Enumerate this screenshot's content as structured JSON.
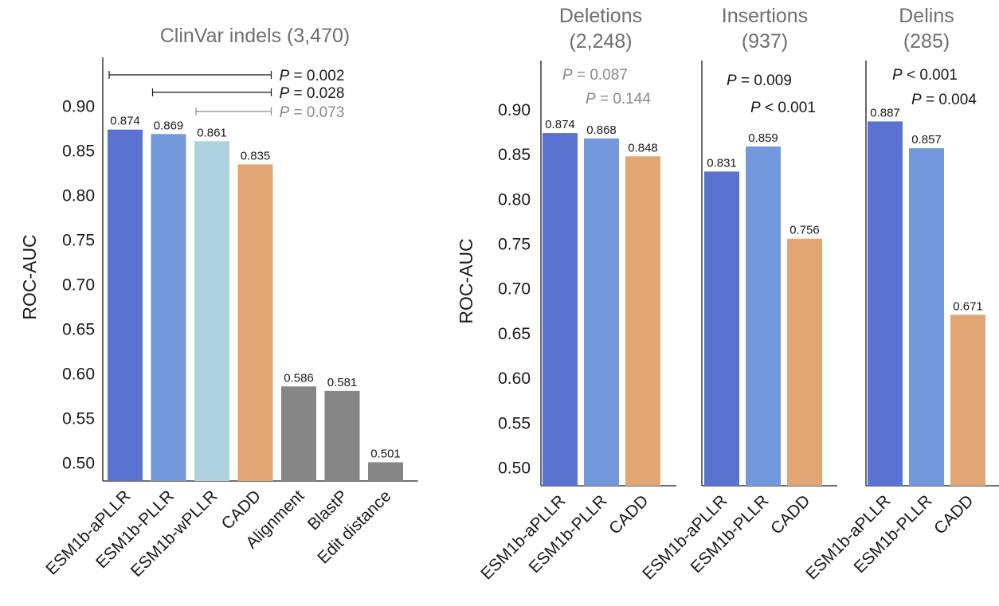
{
  "colors": {
    "ESM1b-aPLLR": "#5b73d0",
    "ESM1b-PLLR": "#7399dc",
    "ESM1b-wPLLR": "#afd3de",
    "CADD": "#e2a674",
    "Alignment": "#868686",
    "BlastP": "#868686",
    "Edit distance": "#868686",
    "sig_black": "#1a1a1a",
    "sig_grey": "#8a8a8a"
  },
  "chart_data": [
    {
      "type": "bar",
      "title": "ClinVar indels (3,470)",
      "title_lines": [
        "ClinVar indels (3,470)"
      ],
      "ylabel": "ROC-AUC",
      "ylim": [
        0.48,
        0.955
      ],
      "yticks": [
        0.9,
        0.85,
        0.8,
        0.75,
        0.7,
        0.65,
        0.6,
        0.55,
        0.5
      ],
      "ytick_labels": [
        "0.90",
        "0.85",
        "0.80",
        "0.75",
        "0.70",
        "0.65",
        "0.60",
        "0.55",
        "0.50"
      ],
      "categories": [
        "ESM1b-aPLLR",
        "ESM1b-PLLR",
        "ESM1b-wPLLR",
        "CADD",
        "Alignment",
        "BlastP",
        "Edit distance"
      ],
      "values": [
        0.874,
        0.869,
        0.861,
        0.835,
        0.586,
        0.581,
        0.501
      ],
      "value_labels": [
        "0.874",
        "0.869",
        "0.861",
        "0.835",
        "0.586",
        "0.581",
        "0.501"
      ],
      "comparisons": [
        {
          "p": "= 0.002",
          "from": 0,
          "to": 3,
          "style": "black"
        },
        {
          "p": "= 0.028",
          "from": 1,
          "to": 3,
          "style": "black"
        },
        {
          "p": "= 0.073",
          "from": 2,
          "to": 3,
          "style": "grey"
        }
      ]
    },
    {
      "type": "bar",
      "title": "Deletions (2,248)",
      "title_lines": [
        "Deletions",
        "(2,248)"
      ],
      "ylabel": "ROC-AUC",
      "ylim": [
        0.48,
        0.955
      ],
      "yticks": [
        0.9,
        0.85,
        0.8,
        0.75,
        0.7,
        0.65,
        0.6,
        0.55,
        0.5
      ],
      "ytick_labels": [
        "0.90",
        "0.85",
        "0.80",
        "0.75",
        "0.70",
        "0.65",
        "0.60",
        "0.55",
        "0.50"
      ],
      "categories": [
        "ESM1b-aPLLR",
        "ESM1b-PLLR",
        "CADD"
      ],
      "values": [
        0.874,
        0.868,
        0.848
      ],
      "value_labels": [
        "0.874",
        "0.868",
        "0.848"
      ],
      "pvalues": [
        {
          "p": "= 0.087",
          "style": "grey"
        },
        {
          "p": "= 0.144",
          "style": "grey"
        }
      ]
    },
    {
      "type": "bar",
      "title": "Insertions (937)",
      "title_lines": [
        "Insertions",
        "(937)"
      ],
      "ylim": [
        0.48,
        0.955
      ],
      "categories": [
        "ESM1b-aPLLR",
        "ESM1b-PLLR",
        "CADD"
      ],
      "values": [
        0.831,
        0.859,
        0.756
      ],
      "value_labels": [
        "0.831",
        "0.859",
        "0.756"
      ],
      "pvalues": [
        {
          "p": "= 0.009",
          "style": "black"
        },
        {
          "p": "< 0.001",
          "style": "black"
        }
      ]
    },
    {
      "type": "bar",
      "title": "Delins (285)",
      "title_lines": [
        "Delins",
        "(285)"
      ],
      "ylim": [
        0.48,
        0.955
      ],
      "categories": [
        "ESM1b-aPLLR",
        "ESM1b-PLLR",
        "CADD"
      ],
      "values": [
        0.887,
        0.857,
        0.671
      ],
      "value_labels": [
        "0.887",
        "0.857",
        "0.671"
      ],
      "pvalues": [
        {
          "p": "< 0.001",
          "style": "black"
        },
        {
          "p": "= 0.004",
          "style": "black"
        }
      ]
    }
  ]
}
